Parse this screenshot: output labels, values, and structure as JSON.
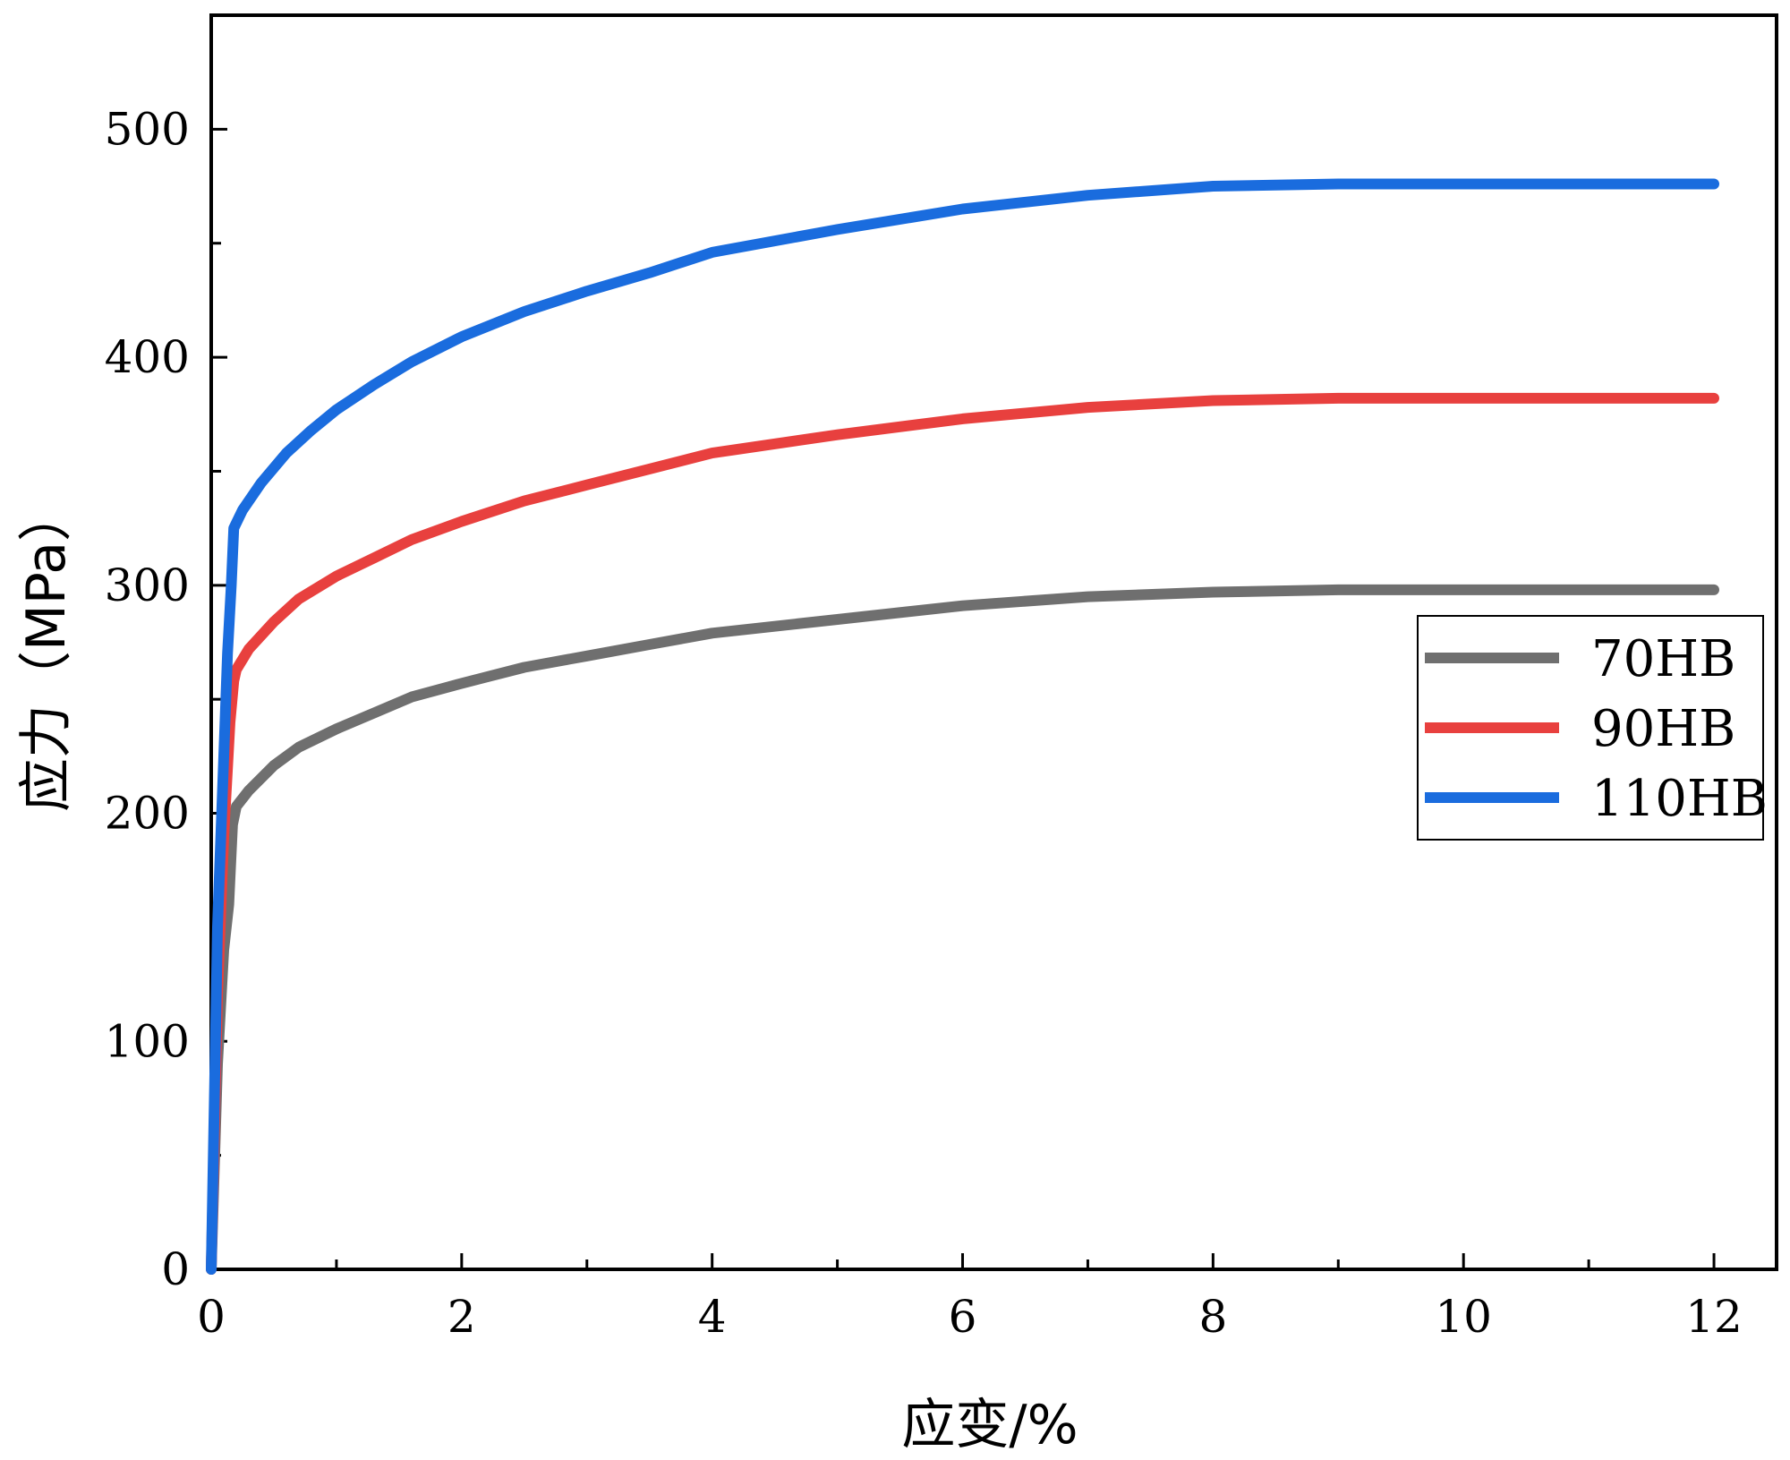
{
  "chart_data": {
    "type": "line",
    "title": "",
    "xlabel": "应变/%",
    "ylabel": "应力（MPa）",
    "xlim": [
      0,
      12.5
    ],
    "ylim": [
      0,
      550
    ],
    "xticks": [
      0,
      2,
      4,
      6,
      8,
      10,
      12
    ],
    "yticks": [
      0,
      100,
      200,
      300,
      400,
      500
    ],
    "grid": false,
    "legend_position": "right",
    "series": [
      {
        "name": "70HB",
        "color": "#6f6f6f",
        "x": [
          0,
          0.05,
          0.1,
          0.14,
          0.17,
          0.2,
          0.3,
          0.5,
          0.7,
          1.0,
          1.3,
          1.6,
          2.0,
          2.5,
          3.0,
          3.5,
          4.0,
          5.0,
          6.0,
          7.0,
          8.0,
          9.0,
          10.0,
          11.0,
          12.0
        ],
        "y": [
          0,
          90,
          140,
          160,
          195,
          203,
          210,
          221,
          229,
          237,
          244,
          251,
          257,
          264,
          269,
          274,
          279,
          285,
          291,
          295,
          297,
          298,
          298,
          298,
          298
        ]
      },
      {
        "name": "90HB",
        "color": "#e8403e",
        "x": [
          0,
          0.05,
          0.1,
          0.15,
          0.18,
          0.2,
          0.3,
          0.5,
          0.7,
          1.0,
          1.3,
          1.6,
          2.0,
          2.5,
          3.0,
          3.5,
          4.0,
          5.0,
          6.0,
          7.0,
          8.0,
          9.0,
          10.0,
          11.0,
          12.0
        ],
        "y": [
          0,
          120,
          190,
          240,
          258,
          263,
          272,
          284,
          294,
          304,
          312,
          320,
          328,
          337,
          344,
          351,
          358,
          366,
          373,
          378,
          381,
          382,
          382,
          382,
          382
        ]
      },
      {
        "name": "110HB",
        "color": "#1a6cde",
        "x": [
          0,
          0.05,
          0.1,
          0.13,
          0.16,
          0.18,
          0.25,
          0.4,
          0.6,
          0.8,
          1.0,
          1.3,
          1.6,
          2.0,
          2.5,
          3.0,
          3.5,
          4.0,
          5.0,
          6.0,
          7.0,
          8.0,
          9.0,
          10.0,
          11.0,
          12.0
        ],
        "y": [
          0,
          150,
          225,
          270,
          300,
          325,
          333,
          345,
          358,
          368,
          377,
          388,
          398,
          409,
          420,
          429,
          437,
          446,
          456,
          465,
          471,
          475,
          476,
          476,
          476,
          476
        ]
      }
    ]
  }
}
